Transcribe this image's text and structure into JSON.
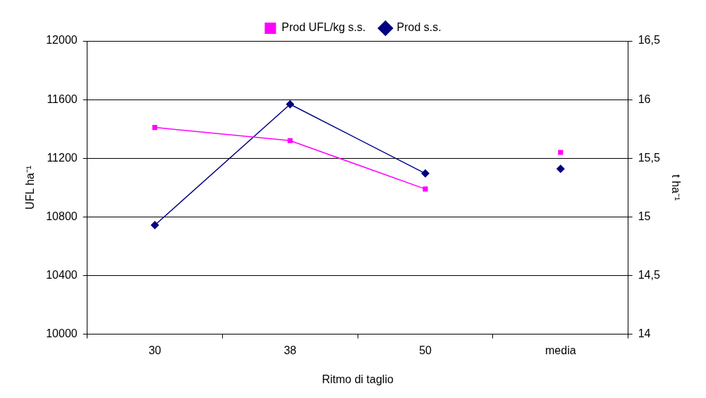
{
  "chart_data": {
    "type": "line",
    "xlabel": "Ritmo di taglio",
    "ylabel": "UFL ha⁻¹",
    "y2label": "t ha⁻¹",
    "categories": [
      "30",
      "38",
      "50",
      "media"
    ],
    "series": [
      {
        "name": "Prod UFL/kg s.s.",
        "color": "#ff00ff",
        "marker": "square",
        "values": [
          11410,
          11320,
          10990,
          null
        ]
      },
      {
        "name": "Prod s.s.",
        "color": "#000080",
        "marker": "diamond",
        "axis": "y2",
        "values": [
          14.93,
          15.96,
          15.37,
          null
        ]
      },
      {
        "type": "scatter",
        "color": "#ff00ff",
        "marker": "square",
        "values": [
          null,
          null,
          null,
          11240
        ]
      },
      {
        "type": "scatter",
        "color": "#000080",
        "marker": "diamond",
        "axis": "y2",
        "values": [
          null,
          null,
          null,
          15.41
        ]
      }
    ],
    "ylim": [
      10000,
      12000
    ],
    "yticks": [
      10000,
      10400,
      10800,
      11200,
      11600,
      12000
    ],
    "y2lim": [
      14,
      16.5
    ],
    "y2ticks": [
      {
        "value": 14,
        "label": "14"
      },
      {
        "value": 14.5,
        "label": "14,5"
      },
      {
        "value": 15,
        "label": "15"
      },
      {
        "value": 15.5,
        "label": "15,5"
      },
      {
        "value": 16,
        "label": "16"
      },
      {
        "value": 16.5,
        "label": "16,5"
      }
    ],
    "grid": "y",
    "legend": "top"
  }
}
